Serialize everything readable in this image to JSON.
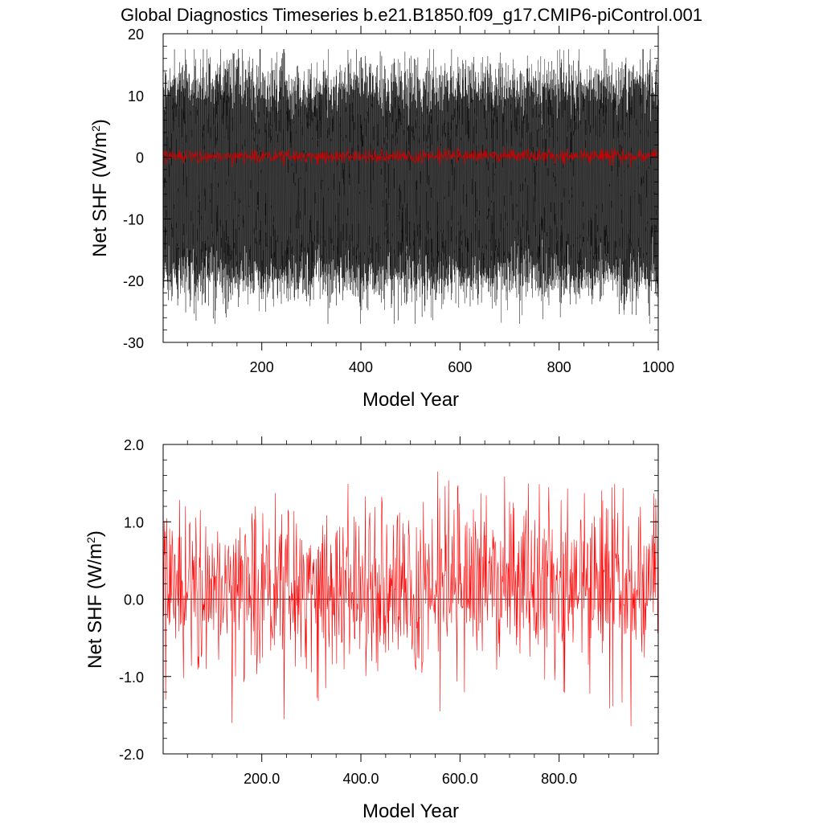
{
  "chart_data": [
    {
      "type": "line",
      "title": "Global Diagnostics Timeseries b.e21.B1850.f09_g17.CMIP6-piControl.001",
      "xlabel": "Model Year",
      "ylabel": "Net SHF (W/m",
      "ylabel_superscript": "2",
      "ylabel_suffix": ")",
      "xlim": [
        1,
        1000
      ],
      "ylim": [
        -30,
        20
      ],
      "x_ticks": [
        200,
        400,
        600,
        800,
        1000
      ],
      "x_tick_labels": [
        "200",
        "400",
        "600",
        "800",
        "1000"
      ],
      "y_ticks": [
        -30,
        -20,
        -10,
        0,
        10,
        20
      ],
      "y_tick_labels": [
        "-30",
        "-20",
        "-10",
        "0",
        "10",
        "20"
      ],
      "grid": false,
      "legend": "none",
      "series": [
        {
          "kind": "monthly",
          "color": "#000000",
          "samples_per_year": 12,
          "mean": -4.0,
          "seasonal_amplitude": 14.5,
          "noise": 3.2,
          "envelope": {
            "max": 17.5,
            "min": -27.0,
            "typical_max": 13.0,
            "typical_min": -22.0
          }
        },
        {
          "kind": "annual_mean",
          "color": "#cc0000",
          "mean": 0.2,
          "std": 0.55,
          "range": [
            -1.6,
            1.6
          ]
        }
      ]
    },
    {
      "type": "line",
      "title": "",
      "xlabel": "Model Year",
      "ylabel": "Net SHF (W/m",
      "ylabel_superscript": "2",
      "ylabel_suffix": ")",
      "xlim": [
        1,
        1000
      ],
      "ylim": [
        -2.0,
        2.0
      ],
      "x_ticks": [
        200,
        400,
        600,
        800
      ],
      "x_tick_labels": [
        "200.0",
        "400.0",
        "600.0",
        "800.0"
      ],
      "y_ticks": [
        -2.0,
        -1.0,
        0.0,
        1.0,
        2.0
      ],
      "y_tick_labels": [
        "-2.0",
        "-1.0",
        "0.0",
        "1.0",
        "2.0"
      ],
      "reference_line": 0.0,
      "grid": false,
      "legend": "none",
      "series": [
        {
          "kind": "annual_mean",
          "color": "#ff0000",
          "mean": 0.2,
          "std": 0.55,
          "range": [
            -1.64,
            1.65
          ],
          "highlights": [
            {
              "x": 3,
              "y": 1.0
            },
            {
              "x": 6,
              "y": -1.3
            },
            {
              "x": 140,
              "y": -1.6
            },
            {
              "x": 245,
              "y": -1.55
            },
            {
              "x": 555,
              "y": 1.65
            },
            {
              "x": 560,
              "y": -1.45
            },
            {
              "x": 945,
              "y": -1.64
            },
            {
              "x": 995,
              "y": 1.3
            }
          ]
        }
      ]
    }
  ]
}
